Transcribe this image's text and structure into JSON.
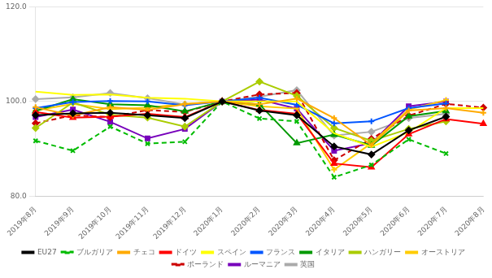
{
  "chart_data": {
    "type": "line",
    "categories": [
      "2019年8月",
      "2019年9月",
      "2019年10月",
      "2019年11月",
      "2019年12月",
      "2020年1月",
      "2020年2月",
      "2020年3月",
      "2020年4月",
      "2020年5月",
      "2020年6月",
      "2020年7月",
      "2020年8月"
    ],
    "series": [
      {
        "name": "EU27",
        "color": "#000000",
        "marker": "diamond",
        "line_style": "solid",
        "values": [
          97.1,
          97.5,
          97.6,
          97.1,
          96.5,
          100.0,
          98.1,
          97.1,
          90.5,
          88.8,
          93.9,
          96.8,
          null
        ]
      },
      {
        "name": "ブルガリア",
        "color": "#00bb00",
        "marker": "x",
        "line_style": "dashed",
        "values": [
          91.7,
          89.6,
          94.7,
          91.1,
          91.5,
          100.0,
          96.4,
          95.8,
          84.0,
          86.6,
          92.0,
          89.0,
          null
        ]
      },
      {
        "name": "チェコ",
        "color": "#ffaa00",
        "marker": "plus",
        "line_style": "solid",
        "values": [
          98.8,
          97.0,
          98.8,
          98.2,
          99.4,
          100.0,
          99.4,
          100.6,
          96.5,
          90.8,
          98.1,
          98.6,
          97.6
        ]
      },
      {
        "name": "ドイツ",
        "color": "#ff0000",
        "marker": "triangle",
        "line_style": "solid",
        "values": [
          97.8,
          96.6,
          96.8,
          97.4,
          96.7,
          100.0,
          98.2,
          97.4,
          86.9,
          86.1,
          93.1,
          96.3,
          95.3
        ]
      },
      {
        "name": "スペイン",
        "color": "#ffff00",
        "marker": "none",
        "line_style": "solid",
        "values": [
          102.1,
          101.4,
          101.5,
          100.8,
          100.6,
          100.0,
          100.0,
          100.0,
          93.3,
          90.4,
          93.5,
          98.6,
          98.6
        ]
      },
      {
        "name": "フランス",
        "color": "#0055ff",
        "marker": "plus",
        "line_style": "solid",
        "values": [
          98.6,
          99.9,
          100.1,
          100.0,
          99.2,
          100.0,
          100.8,
          99.3,
          95.4,
          95.8,
          98.6,
          99.6,
          null
        ]
      },
      {
        "name": "イタリア",
        "color": "#009900",
        "marker": "triangle",
        "line_style": "solid",
        "values": [
          98.0,
          100.5,
          99.4,
          99.2,
          97.9,
          100.0,
          99.4,
          91.2,
          93.0,
          90.7,
          96.9,
          98.0,
          null
        ]
      },
      {
        "name": "ハンガリー",
        "color": "#aacc00",
        "marker": "diamond",
        "line_style": "solid",
        "values": [
          94.4,
          99.8,
          97.2,
          96.6,
          94.7,
          100.0,
          104.2,
          101.2,
          94.4,
          91.7,
          94.2,
          95.8,
          null
        ]
      },
      {
        "name": "オーストリア",
        "color": "#ffcc00",
        "marker": "plus",
        "line_style": "solid",
        "values": [
          98.1,
          99.5,
          98.4,
          98.7,
          99.5,
          100.0,
          99.0,
          98.5,
          85.6,
          91.2,
          98.3,
          100.3,
          null
        ]
      },
      {
        "name": "ポーランド",
        "color": "#cc0000",
        "marker": "diamond",
        "line_style": "dashed",
        "values": [
          95.4,
          97.1,
          96.7,
          98.2,
          97.8,
          100.0,
          101.5,
          101.8,
          87.6,
          92.1,
          97.0,
          99.5,
          98.7
        ]
      },
      {
        "name": "ルーマニア",
        "color": "#7700bb",
        "marker": "square",
        "line_style": "solid",
        "values": [
          96.7,
          98.3,
          95.7,
          92.2,
          94.2,
          100.0,
          100.4,
          98.5,
          89.6,
          91.2,
          99.0,
          100.0,
          null
        ]
      },
      {
        "name": "英国",
        "color": "#aaaaaa",
        "marker": "diamond",
        "line_style": "solid",
        "values": [
          100.5,
          100.9,
          101.8,
          100.7,
          99.4,
          100.0,
          101.0,
          102.4,
          92.8,
          93.6,
          96.5,
          97.4,
          null
        ]
      }
    ],
    "ylim": [
      80.0,
      120.0
    ],
    "yticks": [
      {
        "value": 80.0,
        "label": "80.0"
      },
      {
        "value": 100.0,
        "label": "100.0"
      },
      {
        "value": 120.0,
        "label": "120.0"
      }
    ],
    "grid": true,
    "legend": "bottom"
  }
}
